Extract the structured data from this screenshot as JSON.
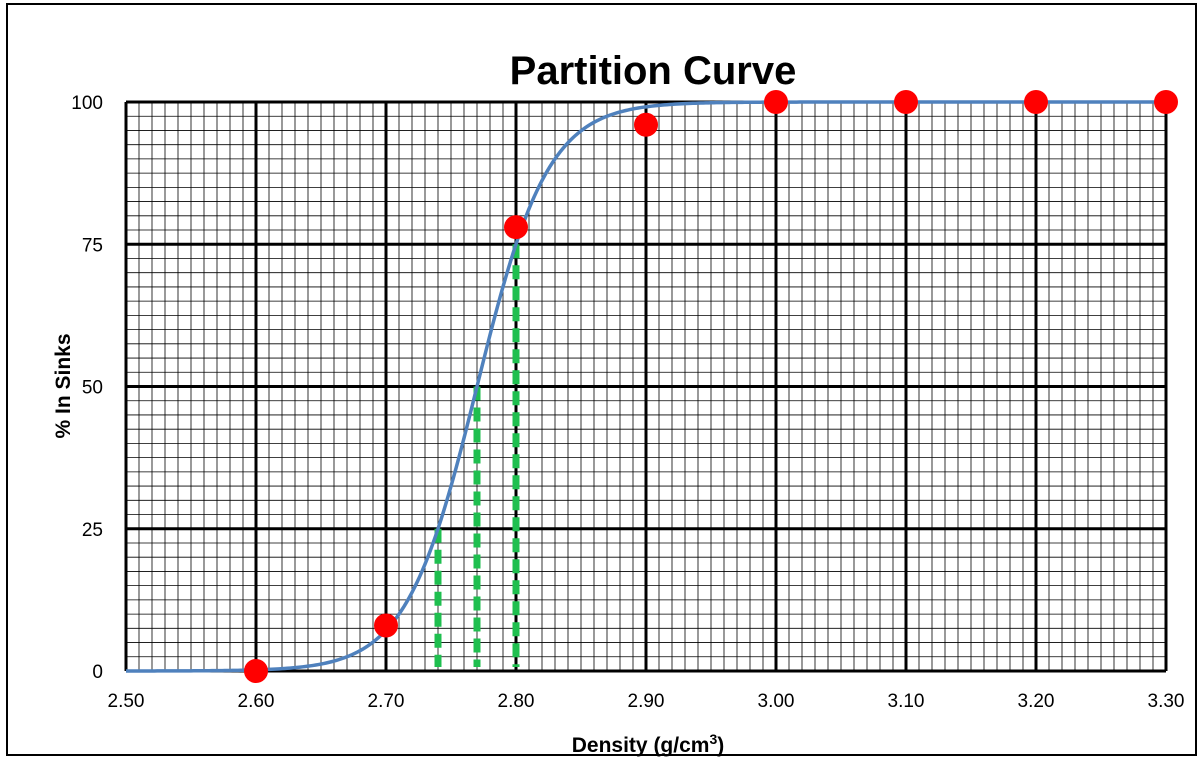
{
  "chart_data": {
    "type": "scatter",
    "title": "Partition Curve",
    "xlabel": {
      "text": "Density (g/cm",
      "sup": "3",
      "close": ")"
    },
    "ylabel": "% In Sinks",
    "xlim": [
      2.5,
      3.3
    ],
    "ylim": [
      0,
      100
    ],
    "x_ticks": [
      "2.50",
      "2.60",
      "2.70",
      "2.80",
      "2.90",
      "3.00",
      "3.10",
      "3.20",
      "3.30"
    ],
    "y_ticks": [
      "0",
      "25",
      "50",
      "75",
      "100"
    ],
    "grid": true,
    "points": [
      {
        "x": 2.6,
        "y": 0
      },
      {
        "x": 2.7,
        "y": 8
      },
      {
        "x": 2.8,
        "y": 78
      },
      {
        "x": 2.9,
        "y": 96
      },
      {
        "x": 3.0,
        "y": 100
      },
      {
        "x": 3.1,
        "y": 100
      },
      {
        "x": 3.2,
        "y": 100
      },
      {
        "x": 3.3,
        "y": 100
      }
    ],
    "fitted_curve": {
      "d50": 2.77,
      "ep": 0.03
    },
    "reference_lines": [
      {
        "x": 2.74,
        "y": 25
      },
      {
        "x": 2.77,
        "y": 50
      },
      {
        "x": 2.8,
        "y": 75
      }
    ],
    "colors": {
      "points": "#ff0000",
      "curve": "#4f81bd",
      "reference_lines": "#1fbf4f",
      "major_grid": "#000000",
      "minor_grid": "#000000"
    }
  }
}
